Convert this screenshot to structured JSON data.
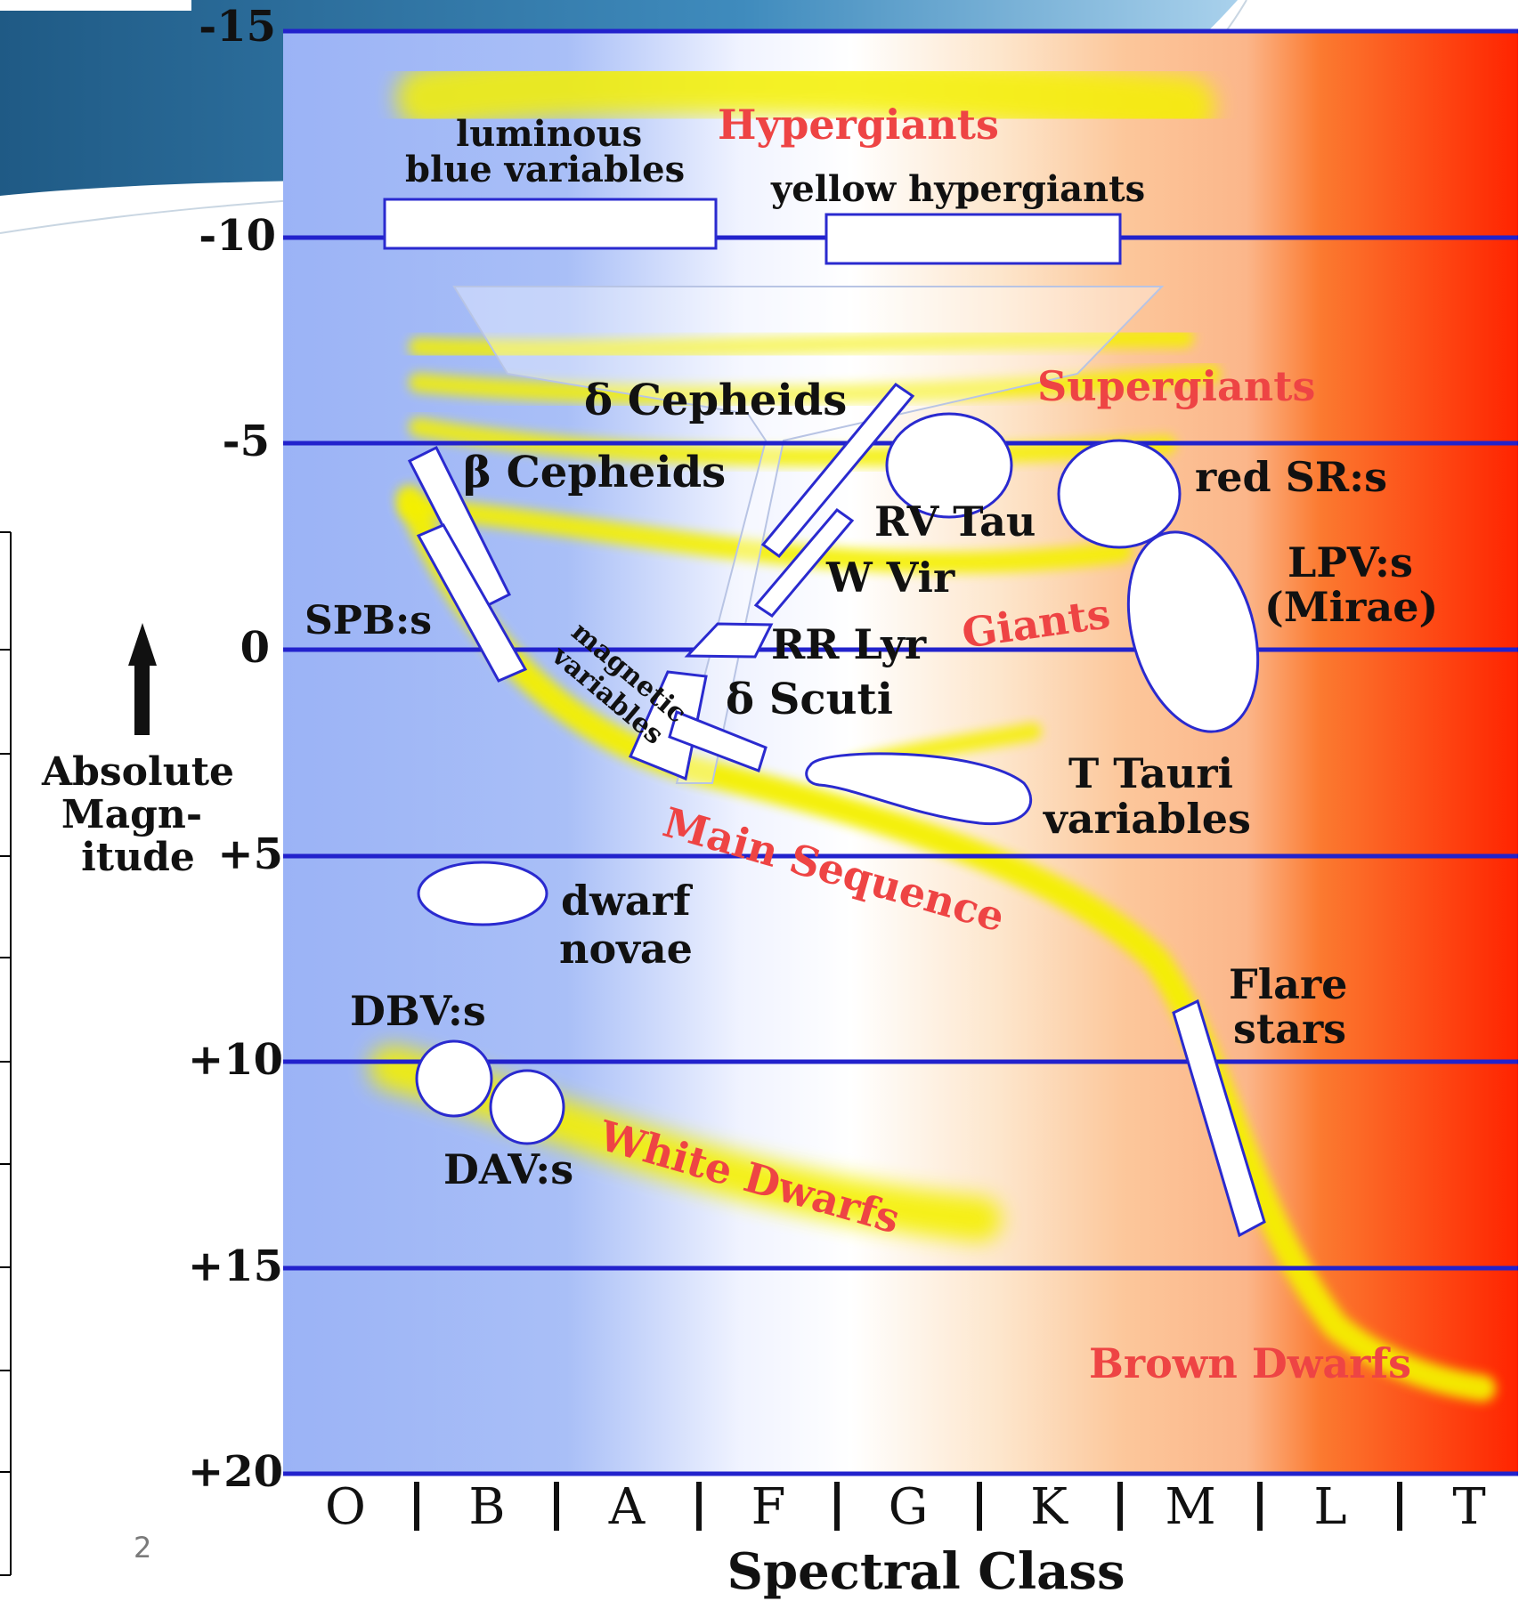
{
  "slide": {
    "page_number": "2"
  },
  "diagram": {
    "y_axis": {
      "label_lines": [
        "Absolute",
        "Magn-",
        "itude"
      ],
      "ticks": [
        "-15",
        "-10",
        "-5",
        "0",
        "+5",
        "+10",
        "+15",
        "+20"
      ]
    },
    "x_axis": {
      "label": "Spectral Class",
      "classes": [
        "O",
        "B",
        "A",
        "F",
        "G",
        "K",
        "M",
        "L",
        "T"
      ]
    },
    "regions": {
      "hypergiants": "Hypergiants",
      "supergiants": "Supergiants",
      "giants": "Giants",
      "main_sequence": "Main Sequence",
      "white_dwarfs": "White Dwarfs",
      "brown_dwarfs": "Brown Dwarfs"
    },
    "variables": {
      "lbv_line1": "luminous",
      "lbv_line2": "blue variables",
      "yellow_hypergiants": "yellow hypergiants",
      "delta_cepheids": "δ Cepheids",
      "beta_cepheids": "β Cepheids",
      "red_srs": "red SR:s",
      "rv_tau": "RV Tau",
      "w_vir": "W Vir",
      "lpv_line1": "LPV:s",
      "lpv_line2": "(Mirae)",
      "spbs": "SPB:s",
      "rr_lyr": "RR Lyr",
      "magnetic_line1": "magnetic",
      "magnetic_line2": "variables",
      "delta_scuti": "δ Scuti",
      "t_tauri_line1": "T Tauri",
      "t_tauri_line2": "variables",
      "dwarf_novae_line1": "dwarf",
      "dwarf_novae_line2": "novae",
      "dbvs": "DBV:s",
      "davs": "DAV:s",
      "flare_line1": "Flare",
      "flare_line2": "stars"
    },
    "colors": {
      "axis_lines": "#2222cc",
      "region_labels": "#ee4444",
      "hot_blue": "#9fb6f7",
      "cool_red": "#ff2a00",
      "sequence_yellow": "#f4f000"
    }
  }
}
